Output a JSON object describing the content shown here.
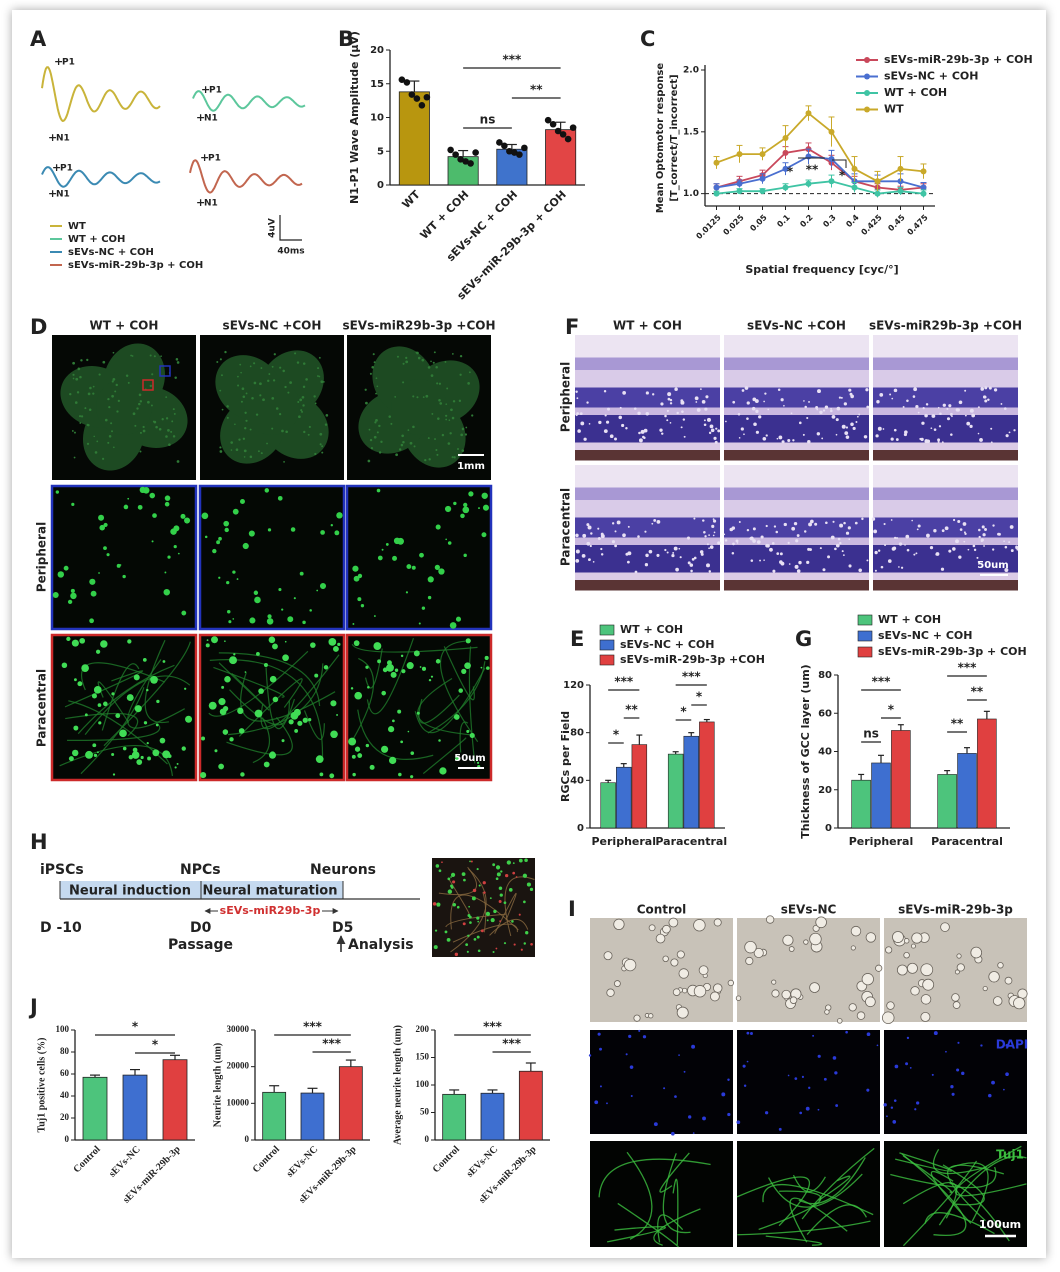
{
  "panel_labels": [
    "A",
    "B",
    "C",
    "D",
    "E",
    "F",
    "G",
    "H",
    "I",
    "J"
  ],
  "recordings": {
    "peak_p1": "P1",
    "peak_n1": "N1",
    "legend": [
      {
        "name": "WT",
        "color": "#c9b43a"
      },
      {
        "name": "WT + COH",
        "color": "#5cc79c"
      },
      {
        "name": "sEVs-NC + COH",
        "color": "#3b8ab3"
      },
      {
        "name": "sEVs-miR-29b-3p + COH",
        "color": "#c2664f"
      }
    ],
    "scale_amplitude": "4uV",
    "scale_time": "40ms"
  },
  "chart_data": [
    {
      "type": "bar",
      "ylabel": "N1-P1 Wave Amplitude (μV)",
      "categories": [
        "WT",
        "WT + COH",
        "sEVs-NC + COH",
        "sEVs-miR-29b-3p + COH"
      ],
      "values": [
        13.8,
        4.2,
        5.3,
        8.2
      ],
      "errors": [
        1.6,
        0.9,
        0.7,
        1.1
      ],
      "points": [
        [
          15.6,
          15.2,
          13.4,
          12.8,
          11.8,
          13.0
        ],
        [
          5.2,
          4.5,
          3.8,
          3.5,
          3.2,
          4.8
        ],
        [
          6.3,
          5.8,
          5.0,
          4.8,
          4.5,
          5.5
        ],
        [
          9.6,
          9.0,
          8.0,
          7.5,
          6.8,
          8.5
        ]
      ],
      "colors": [
        "#b8960f",
        "#4dbb6c",
        "#3f73cc",
        "#e24545"
      ],
      "ylim": [
        0,
        20
      ],
      "yticks": [
        0,
        5,
        10,
        15,
        20
      ],
      "annotations": [
        "***",
        "**",
        "ns"
      ]
    },
    {
      "type": "line",
      "ylabel_lines": [
        "Mean Optomotor response",
        "[T_correct/T_incorrect]"
      ],
      "xlabel": "Spatial frequency [cyc/°]",
      "categories": [
        "0.0125",
        "0.025",
        "0.05",
        "0.1",
        "0.2",
        "0.3",
        "0.4",
        "0.425",
        "0.45",
        "0.475"
      ],
      "series": [
        {
          "name": "sEVs-miR-29b-3p + COH",
          "color": "#c9485b",
          "values": [
            1.05,
            1.1,
            1.15,
            1.33,
            1.36,
            1.25,
            1.1,
            1.05,
            1.03,
            1.05
          ],
          "errors": [
            0.03,
            0.04,
            0.04,
            0.05,
            0.05,
            0.06,
            0.04,
            0.03,
            0.03,
            0.03
          ]
        },
        {
          "name": "sEVs-NC + COH",
          "color": "#4a6fd0",
          "values": [
            1.05,
            1.08,
            1.12,
            1.2,
            1.3,
            1.28,
            1.1,
            1.1,
            1.1,
            1.05
          ],
          "errors": [
            0.03,
            0.03,
            0.04,
            0.05,
            0.06,
            0.07,
            0.06,
            0.05,
            0.06,
            0.04
          ]
        },
        {
          "name": "WT + COH",
          "color": "#3fc4a4",
          "values": [
            1.0,
            1.02,
            1.02,
            1.05,
            1.08,
            1.1,
            1.05,
            1.0,
            1.02,
            1.0
          ],
          "errors": [
            0.02,
            0.02,
            0.02,
            0.03,
            0.03,
            0.05,
            0.04,
            0.03,
            0.03,
            0.03
          ]
        },
        {
          "name": "WT",
          "color": "#c9a92a",
          "values": [
            1.25,
            1.32,
            1.32,
            1.45,
            1.65,
            1.5,
            1.2,
            1.1,
            1.2,
            1.18
          ],
          "errors": [
            0.05,
            0.07,
            0.05,
            0.1,
            0.06,
            0.12,
            0.1,
            0.08,
            0.1,
            0.06
          ]
        }
      ],
      "ylim": [
        0.9,
        2.0
      ],
      "yticks": [
        {
          "value": 1,
          "label": "1.0"
        },
        1.5,
        {
          "value": 2,
          "label": "2.0"
        }
      ],
      "reference_line": 1,
      "annotations": [
        "*",
        "**",
        "*"
      ]
    },
    {
      "type": "bar",
      "ylabel": "RGCs per Field",
      "categories": [
        "Peripheral",
        "Paracentral"
      ],
      "series": [
        {
          "name": "WT + COH",
          "color": "#4dc47c",
          "values": [
            38,
            62
          ],
          "errors": [
            2,
            2
          ]
        },
        {
          "name": "sEVs-NC + COH",
          "color": "#3e6fd0",
          "values": [
            51,
            77
          ],
          "errors": [
            3,
            3
          ]
        },
        {
          "name": "sEVs-miR-29b-3p +COH",
          "color": "#e04040",
          "values": [
            70,
            89
          ],
          "errors": [
            8,
            2
          ]
        }
      ],
      "ylim": [
        0,
        120
      ],
      "yticks": [
        0,
        40,
        80,
        120
      ],
      "annotations": [
        "***",
        "*",
        "**",
        "***",
        "*",
        "*"
      ]
    },
    {
      "type": "bar",
      "ylabel": "Thickness of GCC layer (um)",
      "categories": [
        "Peripheral",
        "Paracentral"
      ],
      "series": [
        {
          "name": "WT + COH",
          "color": "#4dc47c",
          "values": [
            25,
            28
          ],
          "errors": [
            3,
            2
          ]
        },
        {
          "name": "sEVs-NC + COH",
          "color": "#3e6fd0",
          "values": [
            34,
            39
          ],
          "errors": [
            4,
            3
          ]
        },
        {
          "name": "sEVs-miR-29b-3p + COH",
          "color": "#e04040",
          "values": [
            51,
            57
          ],
          "errors": [
            3,
            4
          ]
        }
      ],
      "ylim": [
        0,
        80
      ],
      "yticks": [
        0,
        20,
        40,
        60,
        80
      ],
      "annotations": [
        "***",
        "ns",
        "*",
        "***",
        "**",
        "**"
      ]
    },
    {
      "type": "bar",
      "ylabel": "Tuj1 positive cells (%)",
      "categories": [
        "Control",
        "sEVs-NC",
        "sEVs-miR-29b-3p"
      ],
      "values": [
        57,
        59,
        73
      ],
      "errors": [
        2,
        5,
        4
      ],
      "colors": [
        "#4dc47c",
        "#3e6fd0",
        "#e04040"
      ],
      "ylim": [
        0,
        100
      ],
      "yticks": [
        0,
        20,
        40,
        60,
        80,
        100
      ],
      "annotations": [
        "*",
        "*"
      ]
    },
    {
      "type": "bar",
      "ylabel": "Neurite length (um)",
      "categories": [
        "Control",
        "sEVs-NC",
        "sEVs-miR-29b-3p"
      ],
      "values": [
        13000,
        12800,
        20000
      ],
      "errors": [
        1800,
        1300,
        1800
      ],
      "colors": [
        "#4dc47c",
        "#3e6fd0",
        "#e04040"
      ],
      "ylim": [
        0,
        30000
      ],
      "yticks": [
        0,
        10000,
        20000,
        30000
      ],
      "annotations": [
        "***",
        "***"
      ]
    },
    {
      "type": "bar",
      "ylabel": "Average neurite length (um)",
      "categories": [
        "Control",
        "sEVs-NC",
        "sEVs-miR-29b-3p"
      ],
      "values": [
        83,
        85,
        125
      ],
      "errors": [
        8,
        6,
        15
      ],
      "colors": [
        "#4dc47c",
        "#3e6fd0",
        "#e04040"
      ],
      "ylim": [
        0,
        200
      ],
      "yticks": [
        0,
        50,
        100,
        150,
        200
      ],
      "annotations": [
        "***",
        "***"
      ]
    }
  ],
  "retina_flatmount": {
    "columns": [
      "WT + COH",
      "sEVs-NC +COH",
      "sEVs-miR29b-3p +COH"
    ],
    "rows": [
      "Peripheral",
      "Paracentral"
    ],
    "scale_bars": [
      "1mm",
      "50um"
    ]
  },
  "retina_sections": {
    "columns": [
      "WT + COH",
      "sEVs-NC +COH",
      "sEVs-miR29b-3p +COH"
    ],
    "rows": [
      "Peripheral",
      "Paracentral"
    ],
    "scale_bar": "50um"
  },
  "differentiation_protocol": {
    "stages": [
      "iPSCs",
      "NPCs",
      "Neurons"
    ],
    "phases": [
      "Neural induction",
      "Neural maturation"
    ],
    "treatment": "sEVs-miR29b-3p",
    "days": [
      "D -10",
      "D0",
      "D5"
    ],
    "passage": "Passage",
    "analysis": "Analysis"
  },
  "neuron_images": {
    "columns": [
      "Control",
      "sEVs-NC",
      "sEVs-miR-29b-3p"
    ],
    "stains": [
      "DAPI",
      "Tuj1"
    ],
    "scale_bar": "100um"
  }
}
